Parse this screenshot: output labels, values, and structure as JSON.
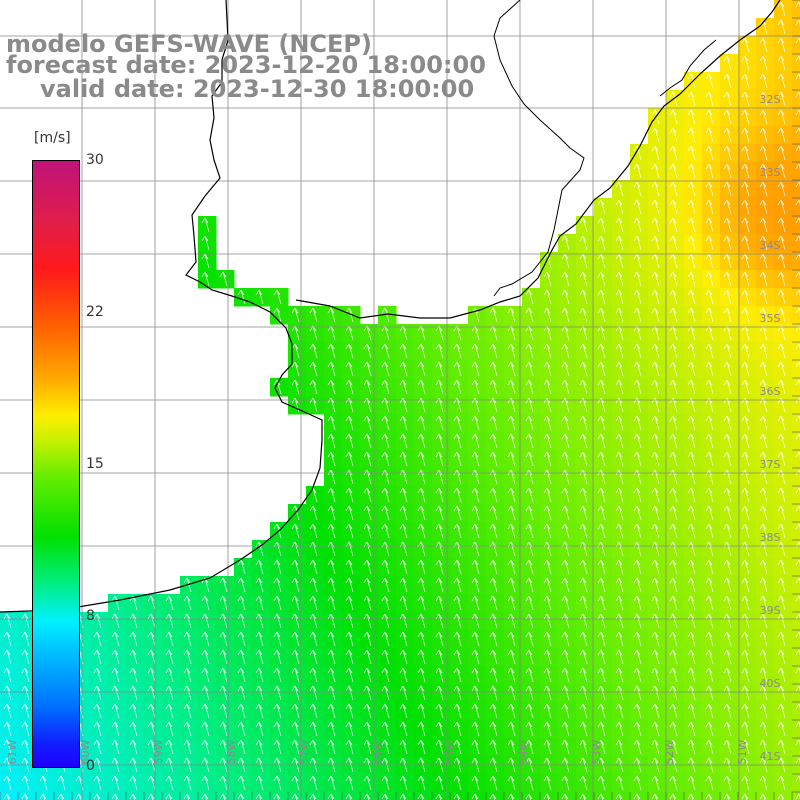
{
  "title": {
    "line1": "modelo GEFS-WAVE (NCEP)",
    "line2": "forecast date: 2023-12-20 18:00:00",
    "line3": "valid date: 2023-12-30 18:00:00"
  },
  "colorbar": {
    "unit": "[m/s]",
    "ticks": [
      "30",
      "22",
      "15",
      "8",
      "0"
    ],
    "values": [
      30,
      22,
      15,
      8,
      0
    ]
  },
  "lat_labels": [
    "32S",
    "33S",
    "34S",
    "35S",
    "36S",
    "37S",
    "38S",
    "39S",
    "40S",
    "41S"
  ],
  "lon_labels": [
    "61W",
    "60W",
    "59W",
    "58W",
    "57W",
    "56W",
    "55W",
    "54W",
    "53W",
    "52W",
    "51W"
  ],
  "colors": {
    "coast": "#000000",
    "grid": "#888888",
    "arrows": "#ffffff",
    "labels": "#8a8a8a"
  }
}
